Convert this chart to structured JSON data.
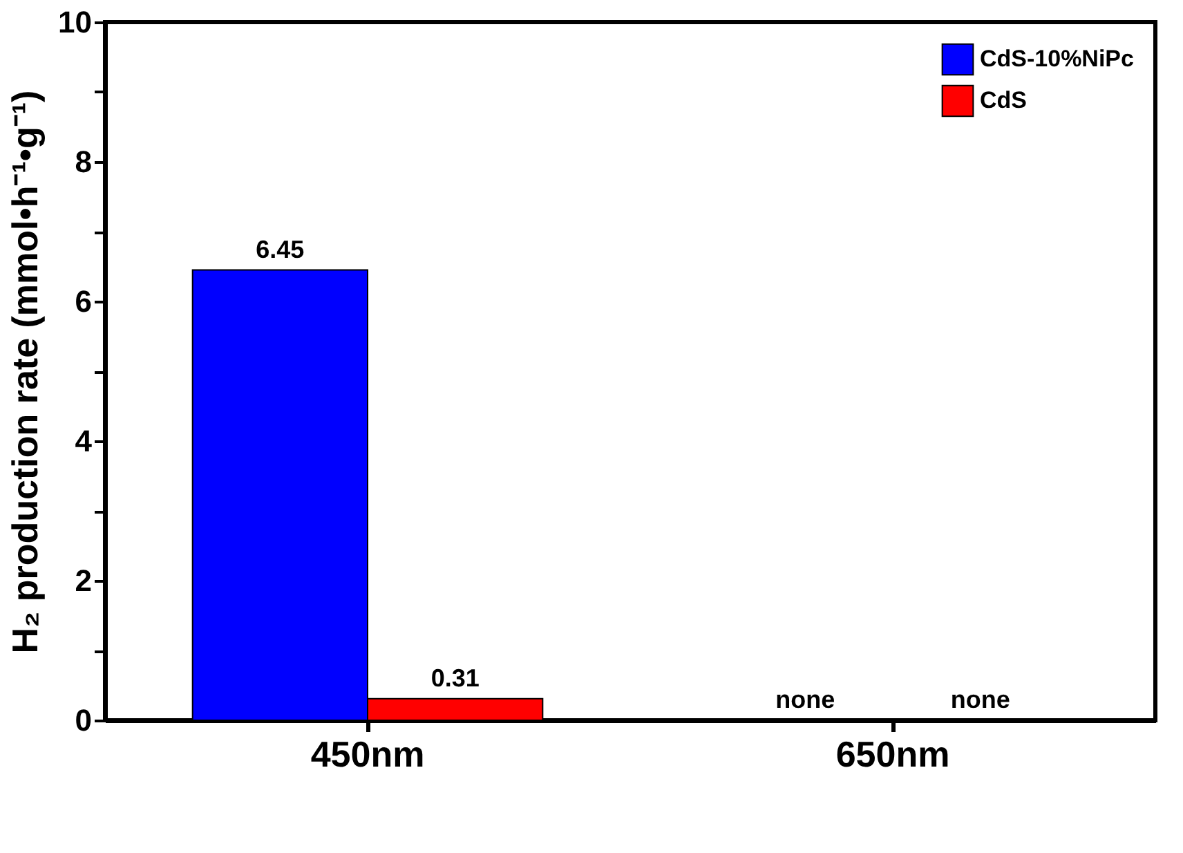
{
  "chart_data": {
    "type": "bar",
    "ylabel": "H₂ production rate (mmol•h⁻¹•g⁻¹)",
    "categories": [
      "450nm",
      "650nm"
    ],
    "series": [
      {
        "name": "CdS-10%NiPc",
        "color": "#0000ff",
        "values": [
          6.45,
          null
        ],
        "value_labels": [
          "6.45",
          "none"
        ]
      },
      {
        "name": "CdS",
        "color": "#ff0000",
        "values": [
          0.31,
          null
        ],
        "value_labels": [
          "0.31",
          "none"
        ]
      }
    ],
    "ylim": [
      0,
      10
    ],
    "yticks": [
      0,
      {
        "value": 1,
        "label": null
      },
      2,
      {
        "value": 3,
        "label": null
      },
      4,
      {
        "value": 5,
        "label": null
      },
      6,
      {
        "value": 7,
        "label": null
      },
      8,
      {
        "value": 9,
        "label": null
      },
      10
    ],
    "grid": false,
    "legend": "top right"
  }
}
